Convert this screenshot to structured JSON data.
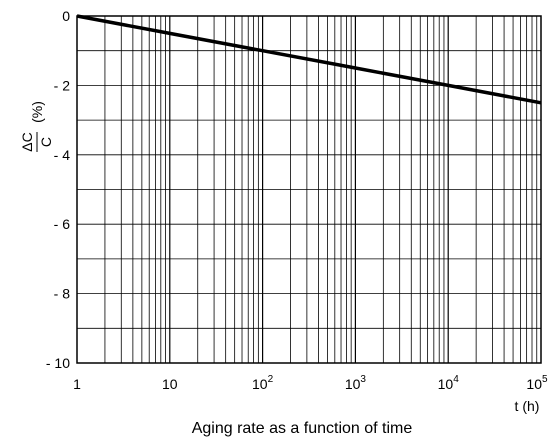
{
  "chart_data": {
    "type": "line",
    "title": "",
    "caption": "Aging rate as a function of time",
    "xlabel": "t (h)",
    "ylabel": {
      "numerator": "ΔC",
      "denominator": "C",
      "unit": "(%)"
    },
    "x_scale": "log",
    "xlim": [
      1,
      100000
    ],
    "ylim": [
      -10,
      0
    ],
    "grid": true,
    "x_ticks": [
      {
        "base": "1",
        "exp": ""
      },
      {
        "base": "10",
        "exp": ""
      },
      {
        "base": "10",
        "exp": "2"
      },
      {
        "base": "10",
        "exp": "3"
      },
      {
        "base": "10",
        "exp": "4"
      },
      {
        "base": "10",
        "exp": "5"
      }
    ],
    "y_ticks": [
      "0",
      "- 2",
      "- 4",
      "- 6",
      "- 8",
      "- 10"
    ],
    "y_tick_values": [
      0,
      -2,
      -4,
      -6,
      -8,
      -10
    ],
    "series": [
      {
        "x": [
          1,
          10,
          100,
          1000,
          10000,
          100000
        ],
        "y": [
          0,
          -0.5,
          -1.0,
          -1.5,
          -2.0,
          -2.5
        ]
      }
    ]
  }
}
